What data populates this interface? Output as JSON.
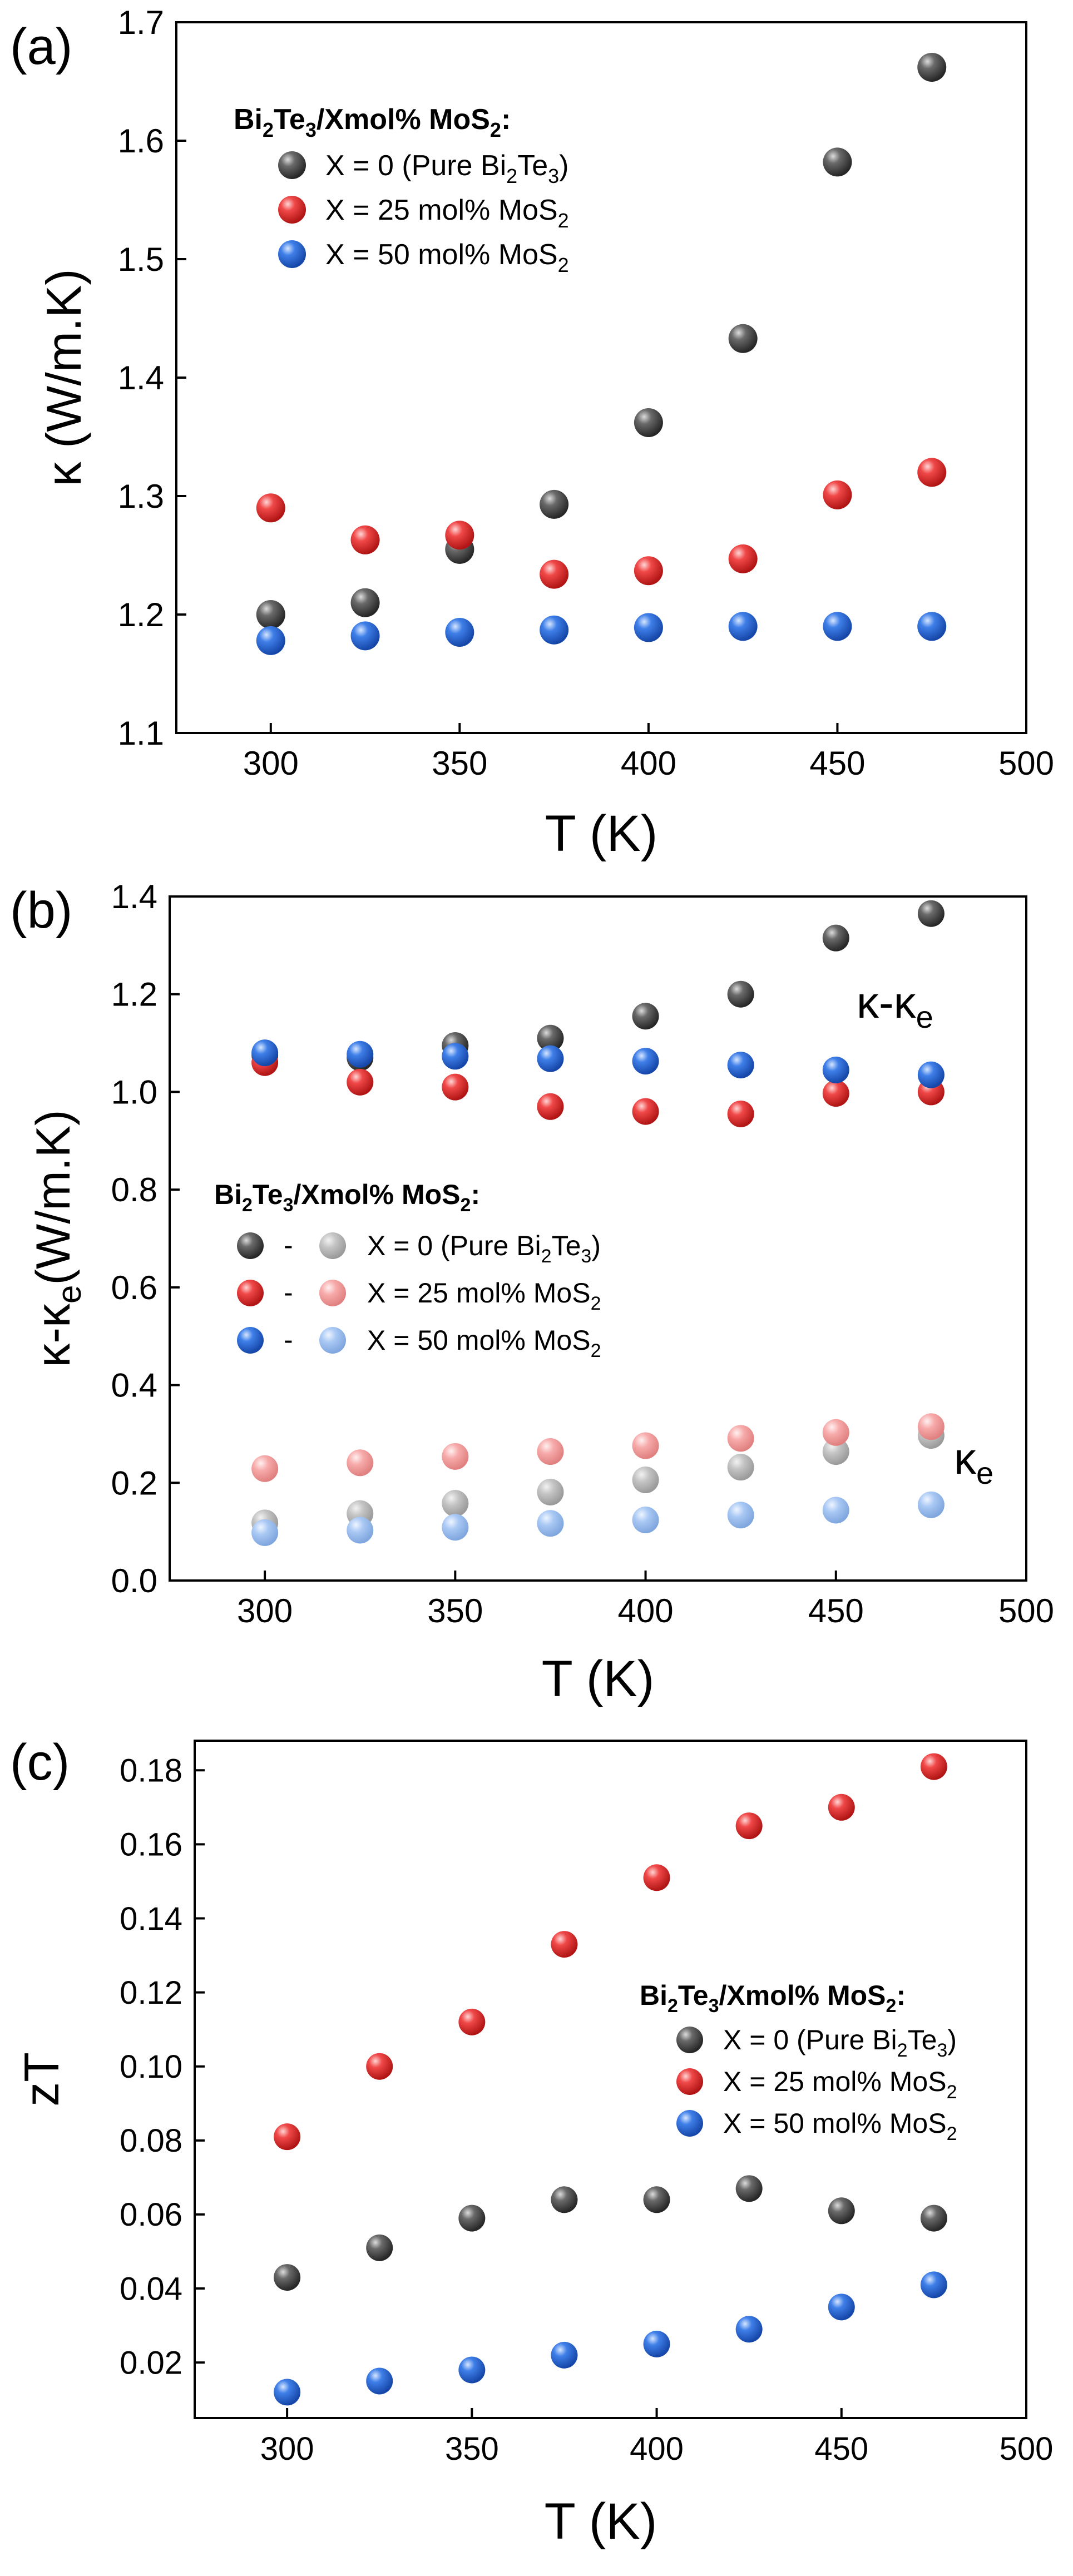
{
  "colors": {
    "black": "#4a4a4a",
    "red": "#ee3333",
    "blue": "#2f6fe0",
    "light_black": "#b8b8b8",
    "light_red": "#f5a3a3",
    "light_blue": "#a6c6f2"
  },
  "chart_data": [
    {
      "panel_label": "(a)",
      "type": "scatter",
      "title": "",
      "xlabel": "T (K)",
      "ylabel": "κ (W/m.K)",
      "xlim": [
        275,
        500
      ],
      "ylim": [
        1.1,
        1.7
      ],
      "xticks": [
        300,
        350,
        400,
        450,
        500
      ],
      "yticks": [
        1.1,
        1.2,
        1.3,
        1.4,
        1.5,
        1.6,
        1.7
      ],
      "ytick_decimals": 1,
      "x": [
        300,
        325,
        350,
        375,
        400,
        425,
        450,
        475
      ],
      "legend_title": "Bi2Te3/Xmol% MoS2:",
      "legend_position": "top-left",
      "series": [
        {
          "name": "X = 0 (Pure Bi2Te3)",
          "color": "black",
          "values": [
            1.2,
            1.21,
            1.255,
            1.293,
            1.362,
            1.433,
            1.582,
            1.662
          ]
        },
        {
          "name": "X = 25 mol% MoS2",
          "color": "red",
          "values": [
            1.29,
            1.263,
            1.267,
            1.234,
            1.237,
            1.247,
            1.301,
            1.32
          ]
        },
        {
          "name": "X = 50 mol% MoS2",
          "color": "blue",
          "values": [
            1.178,
            1.182,
            1.185,
            1.187,
            1.189,
            1.19,
            1.19,
            1.19
          ]
        }
      ]
    },
    {
      "panel_label": "(b)",
      "type": "scatter",
      "title": "",
      "xlabel": "T (K)",
      "ylabel": "κ-κe(W/m.K)",
      "xlim": [
        275,
        500
      ],
      "ylim": [
        0.0,
        1.4
      ],
      "xticks": [
        300,
        350,
        400,
        450,
        500
      ],
      "yticks": [
        0.0,
        0.2,
        0.4,
        0.6,
        0.8,
        1.0,
        1.2,
        1.4
      ],
      "ytick_decimals": 1,
      "x": [
        300,
        325,
        350,
        375,
        400,
        425,
        450,
        475
      ],
      "legend_title": "Bi2Te3/Xmol% MoS2:",
      "legend_position": "center-left",
      "annotations": [
        "κ-κe",
        "κe"
      ],
      "series": [
        {
          "name": "X = 0 (Pure Bi2Te3)",
          "quantity": "κ-κe",
          "color": "black",
          "values": [
            1.075,
            1.07,
            1.095,
            1.11,
            1.155,
            1.2,
            1.315,
            1.365
          ]
        },
        {
          "name": "X = 25 mol% MoS2",
          "quantity": "κ-κe",
          "color": "red",
          "values": [
            1.06,
            1.02,
            1.01,
            0.97,
            0.96,
            0.955,
            0.997,
            1.0
          ]
        },
        {
          "name": "X = 50 mol% MoS2",
          "quantity": "κ-κe",
          "color": "blue",
          "values": [
            1.08,
            1.077,
            1.073,
            1.068,
            1.063,
            1.055,
            1.045,
            1.035
          ]
        },
        {
          "name": "X = 0 (Pure Bi2Te3)",
          "quantity": "κe",
          "color": "light_black",
          "values": [
            0.118,
            0.137,
            0.158,
            0.181,
            0.206,
            0.232,
            0.264,
            0.297
          ]
        },
        {
          "name": "X = 25 mol% MoS2",
          "quantity": "κe",
          "color": "light_red",
          "values": [
            0.229,
            0.241,
            0.254,
            0.264,
            0.276,
            0.291,
            0.303,
            0.315
          ]
        },
        {
          "name": "X = 50 mol% MoS2",
          "quantity": "κe",
          "color": "light_blue",
          "values": [
            0.098,
            0.103,
            0.109,
            0.117,
            0.124,
            0.134,
            0.144,
            0.155
          ]
        }
      ]
    },
    {
      "panel_label": "(c)",
      "type": "scatter",
      "title": "",
      "xlabel": "T (K)",
      "ylabel": "zT",
      "xlim": [
        275,
        500
      ],
      "ylim": [
        0.005,
        0.188
      ],
      "xticks": [
        300,
        350,
        400,
        450,
        500
      ],
      "yticks": [
        0.02,
        0.04,
        0.06,
        0.08,
        0.1,
        0.12,
        0.14,
        0.16,
        0.18
      ],
      "ytick_decimals": 2,
      "x": [
        300,
        325,
        350,
        375,
        400,
        425,
        450,
        475
      ],
      "legend_title": "Bi2Te3/Xmol% MoS2:",
      "legend_position": "center-right",
      "series": [
        {
          "name": "X = 0 (Pure Bi2Te3)",
          "color": "black",
          "values": [
            0.043,
            0.051,
            0.059,
            0.064,
            0.064,
            0.067,
            0.061,
            0.059
          ]
        },
        {
          "name": "X = 25 mol% MoS2",
          "color": "red",
          "values": [
            0.081,
            0.1,
            0.112,
            0.133,
            0.151,
            0.165,
            0.17,
            0.181
          ]
        },
        {
          "name": "X = 50 mol% MoS2",
          "color": "blue",
          "values": [
            0.012,
            0.015,
            0.018,
            0.022,
            0.025,
            0.029,
            0.035,
            0.041
          ]
        }
      ]
    }
  ]
}
